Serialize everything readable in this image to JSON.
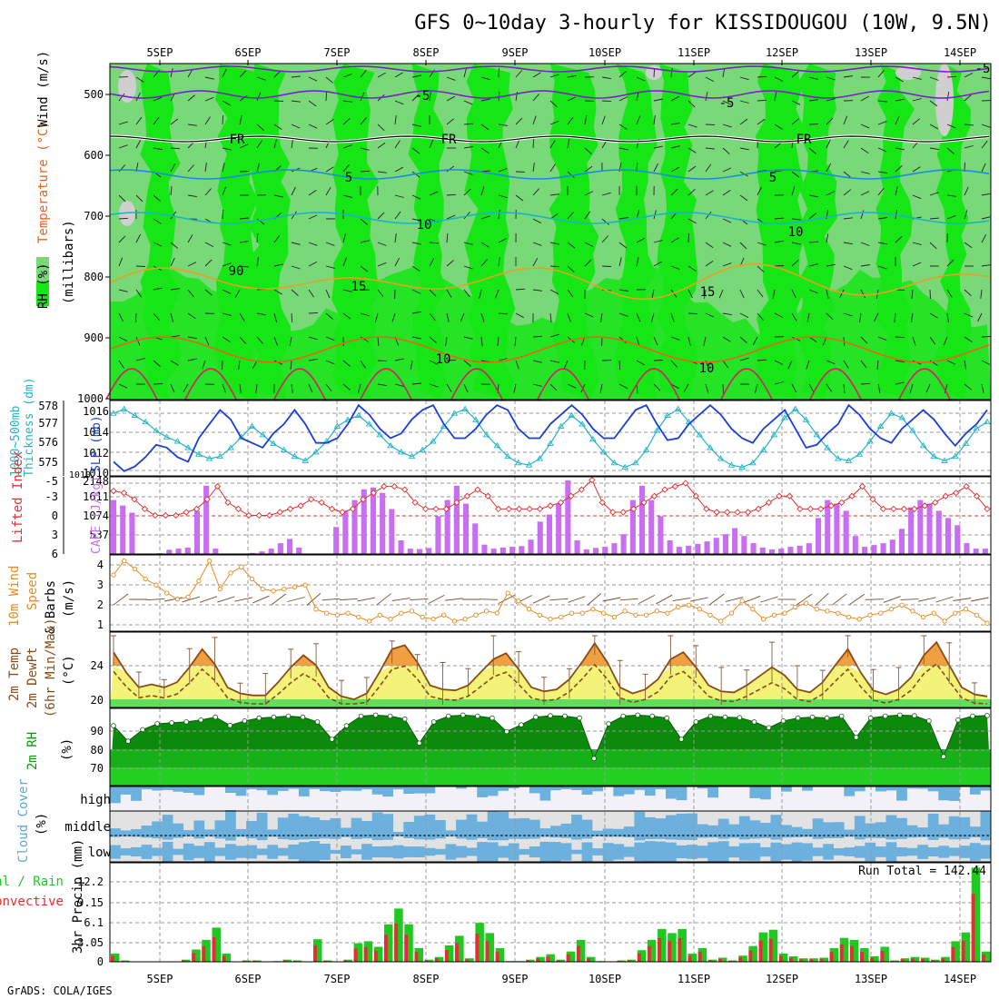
{
  "title": "GFS 0~10day 3-hourly for KISSIDOUGOU (10W, 9.5N)",
  "footer": "GrADS: COLA/IGES",
  "dates": [
    "5SEP",
    "6SEP",
    "7SEP",
    "8SEP",
    "9SEP",
    "10SEP",
    "11SEP",
    "12SEP",
    "13SEP",
    "14SEP"
  ],
  "colors": {
    "rh_light": "#79d979",
    "rh_bright": "#16e516",
    "rh_dark": "#0b9a0b",
    "rh_gray": "#cfcfcf",
    "temp_purple": "#7a22c8",
    "temp_blue": "#1c8ce0",
    "temp_cyan": "#1bb3c8",
    "temp_orange": "#e8a020",
    "temp_dorange": "#e8621a",
    "temp_magenta": "#d81c6a",
    "slp": "#1a3ed8",
    "thickness": "#22b4c8",
    "lifted": "#e03030",
    "cape": "#c86ef0",
    "wind": "#e88a20",
    "temp_fill": "#f3f37a",
    "temp_hot": "#f0a040",
    "temp_line": "#8b4a14",
    "rh2m_dark": "#0b8a0b",
    "rh2m_mid": "#18b018",
    "rh2m_low": "#22d022",
    "cloud": "#6cb0de",
    "precip_green": "#22c822",
    "precip_red": "#e03030"
  },
  "upper_panel": {
    "ylabel_rh": "RH (%)",
    "ylabel_temp": "Temperature (°C)",
    "ylabel_wind": "Wind (m/s)",
    "ylabel_units": "(millibars)",
    "yticks": [
      "500",
      "600",
      "700",
      "800",
      "900",
      "1000"
    ],
    "contour_labels": [
      "-5",
      "-5",
      "FR",
      "FR",
      "FR",
      "-5",
      "5",
      "5",
      "10",
      "10",
      "15",
      "15",
      "10",
      "10",
      "90"
    ]
  },
  "slp_panel": {
    "ylabel_thk": "Thickness (dm)",
    "ylabel_thk_top": "1000~500mb",
    "ylabel_slp": "SLP (mb)",
    "left_ticks": [
      "578",
      "577",
      "576",
      "575"
    ],
    "right_ticks": [
      "1016",
      "1014",
      "1012",
      "1010"
    ],
    "corner_tick": "1010"
  },
  "cape_panel": {
    "ylabel_li": "Lifted Index",
    "ylabel_cape": "CAPE (J/kg)",
    "left_ticks": [
      "-5",
      "-3",
      "0",
      "3",
      "6"
    ],
    "right_ticks": [
      "2148",
      "1611",
      "1074",
      "537"
    ]
  },
  "wind_panel": {
    "ylabel_a": "10m Wind",
    "ylabel_b": "Speed",
    "ylabel_c": "& Barbs",
    "units": "(m/s)",
    "ticks": [
      "4",
      "3",
      "2",
      "1"
    ]
  },
  "temp_panel": {
    "ylabel_a": "2m Temp",
    "ylabel_b": "2m DewPt",
    "ylabel_c": "(6hr Min/Max)",
    "units": "(°C)",
    "ticks": [
      "24",
      "20"
    ]
  },
  "rh_panel": {
    "ylabel": "2m RH",
    "units": "(%)",
    "ticks": [
      "90",
      "80",
      "70"
    ]
  },
  "cloud_panel": {
    "ylabel": "Cloud Cover",
    "units": "(%)",
    "levels": [
      "high",
      "middle",
      "low"
    ]
  },
  "precip_panel": {
    "ylabel_a": "3hr Precip (mm)",
    "ylabel_total": "Total / Rain",
    "ylabel_conv": "Convective",
    "ticks": [
      "12.2",
      "9.15",
      "6.1",
      "3.05",
      "0"
    ],
    "run_total": "Run Total = 142.44"
  },
  "chart_data": [
    {
      "type": "line",
      "title": "SLP (mb)",
      "x": "3-hourly steps 4 SEP 21Z to 14 SEP",
      "ylim": [
        1009,
        1017
      ],
      "values": [
        1010.5,
        1009.5,
        1010,
        1011,
        1012.3,
        1012,
        1011,
        1010.5,
        1013,
        1014.5,
        1016,
        1015,
        1013,
        1012.5,
        1012,
        1013.5,
        1014.5,
        1016,
        1014.5,
        1012.5,
        1012.5,
        1013,
        1014.5,
        1016.5,
        1015.5,
        1014,
        1013,
        1013.5,
        1015,
        1016,
        1016.5,
        1014.5,
        1013,
        1013,
        1014,
        1015.5,
        1016.5,
        1016,
        1014,
        1013,
        1013,
        1014.5,
        1015.5,
        1016.5,
        1015.5,
        1014,
        1013,
        1013,
        1014.5,
        1016,
        1016.5,
        1014.5,
        1012.8,
        1013,
        1014.5,
        1015.5,
        1016.5,
        1015.5,
        1014,
        1013,
        1012.5,
        1014,
        1015,
        1016,
        1014,
        1012,
        1012.3,
        1013.5,
        1014.5,
        1016.5,
        1015.5,
        1014,
        1013,
        1012.5,
        1014,
        1015,
        1016,
        1015,
        1013.5,
        1012.2,
        1013.5,
        1014.5,
        1016
      ]
    },
    {
      "type": "line",
      "title": "Thickness 1000~500mb (dm)",
      "ylim": [
        574.7,
        578.2
      ],
      "values": [
        577.6,
        577.8,
        577.5,
        577.2,
        576.8,
        576.5,
        576.3,
        576,
        575.7,
        575.5,
        575.6,
        576,
        576.5,
        577,
        576.6,
        576.2,
        575.9,
        575.6,
        575.4,
        575.8,
        576.3,
        577,
        577.3,
        577.5,
        577.1,
        576.6,
        576.1,
        575.8,
        575.6,
        575.9,
        576.3,
        577,
        577.6,
        577.8,
        577.3,
        576.6,
        576.1,
        575.6,
        575.3,
        575.2,
        575.5,
        576.2,
        577,
        577.5,
        577.1,
        576.4,
        575.8,
        575.3,
        575.1,
        575.3,
        575.9,
        576.8,
        577.5,
        577.8,
        577.2,
        576.6,
        576,
        575.5,
        575.2,
        575.1,
        575.3,
        575.9,
        576.6,
        577.4,
        577.8,
        577.3,
        576.6,
        576,
        575.5,
        575.4,
        575.7,
        576.3,
        577,
        577.6,
        577.4,
        576.8,
        576.1,
        575.6,
        575.4,
        575.6,
        576.2,
        576.9,
        577.2
      ]
    },
    {
      "type": "bar",
      "title": "CAPE (J/kg)",
      "ylim": [
        0,
        2148
      ],
      "values": [
        1500,
        1350,
        1150,
        5,
        10,
        20,
        120,
        150,
        180,
        1200,
        1900,
        150,
        5,
        5,
        10,
        30,
        70,
        150,
        300,
        420,
        180,
        10,
        10,
        10,
        750,
        1200,
        1500,
        1800,
        1850,
        1700,
        1250,
        380,
        150,
        140,
        170,
        1050,
        1500,
        1900,
        1400,
        850,
        260,
        150,
        180,
        200,
        220,
        400,
        900,
        1100,
        1400,
        2050,
        380,
        130,
        170,
        200,
        300,
        550,
        1500,
        1900,
        1500,
        1050,
        380,
        200,
        230,
        280,
        350,
        450,
        550,
        720,
        500,
        300,
        180,
        130,
        150,
        200,
        230,
        300,
        1000,
        1500,
        1400,
        1200,
        500,
        200,
        250,
        300,
        400,
        700,
        1300,
        1500,
        1400,
        1200,
        1000,
        800,
        300,
        150,
        150
      ]
    },
    {
      "type": "line",
      "title": "Lifted Index",
      "ylim": [
        6,
        -6
      ],
      "values": [
        -3.8,
        -3.5,
        -2.5,
        -1,
        0,
        0,
        0,
        -0.5,
        -1,
        -2.5,
        -4.5,
        -2,
        -1,
        0,
        0,
        0,
        -0.5,
        -1,
        -1.5,
        -2.5,
        -2,
        -1,
        -0.5,
        -1,
        -2.5,
        -3.5,
        -4.5,
        -4.5,
        -4,
        -2,
        -1,
        -1,
        -1,
        -2,
        -3,
        -4,
        -3,
        -1,
        -1,
        -1,
        -1,
        -1,
        -1.5,
        -2,
        -3,
        -4,
        -5.5,
        -2,
        -0.5,
        -0.5,
        -1,
        -2,
        -3,
        -4,
        -4.5,
        -5,
        -3,
        -1,
        -0.5,
        -0.5,
        -0.5,
        -0.5,
        -1,
        -2,
        -3,
        -3,
        -1,
        -1,
        -1,
        -1.5,
        -2,
        -3,
        -4.5,
        -2.5,
        -1,
        -1,
        -1,
        -1,
        -1.5,
        -2,
        -3,
        -3.5,
        -4.5,
        -3,
        -1
      ]
    },
    {
      "type": "line",
      "title": "10m Wind Speed (m/s)",
      "ylim": [
        0.7,
        4.5
      ],
      "values": [
        3.5,
        4.2,
        3.8,
        3.3,
        3,
        2.6,
        2.3,
        2.4,
        3.2,
        4.2,
        2.8,
        3.6,
        3.9,
        3.3,
        2.8,
        2.7,
        2.8,
        2.9,
        3,
        1.8,
        1.6,
        1.5,
        1.6,
        1.4,
        1.2,
        1.5,
        1.3,
        1.6,
        1.7,
        1.4,
        1.3,
        1.5,
        1.2,
        1.3,
        1.5,
        1.7,
        1.6,
        2.6,
        2.2,
        1.8,
        1.5,
        1.3,
        1.4,
        1.6,
        1.6,
        1.8,
        1.6,
        1.4,
        1.7,
        1.5,
        1.5,
        1.7,
        1.6,
        1.9,
        2,
        1.8,
        1.5,
        1.2,
        1.6,
        2.2,
        1.8,
        1.3,
        1.5,
        1.6,
        1.9,
        2.1,
        1.8,
        1.7,
        1.6,
        1.4,
        1.3,
        1.5,
        1.6,
        1.8,
        2,
        1.7,
        1.4,
        1.6,
        1.2,
        1.6,
        1.8,
        1.5,
        1.1
      ]
    },
    {
      "type": "area",
      "title": "2m Temp (°C)",
      "ylim": [
        19,
        26.5
      ],
      "values": [
        24.5,
        22.5,
        21,
        21.3,
        21,
        21.5,
        23,
        24.8,
        23.3,
        21,
        20.4,
        20.2,
        20.2,
        21.5,
        23,
        24.2,
        23.2,
        21,
        20.1,
        19.8,
        20.4,
        22.5,
        24.8,
        25.2,
        23.5,
        21.2,
        20.8,
        20.7,
        21.2,
        22.5,
        23.8,
        24.4,
        22.8,
        21,
        20.6,
        20.8,
        21.8,
        23.5,
        25.4,
        23.5,
        21,
        20.4,
        20.8,
        21.8,
        23.8,
        24.5,
        23,
        21.2,
        20.6,
        20.5,
        21.2,
        22.1,
        23,
        22.2,
        20.8,
        20.5,
        21.5,
        23.2,
        24.8,
        22.5,
        20.7,
        20.3,
        20.8,
        22,
        24.2,
        25.5,
        23.2,
        21,
        20.3,
        20.1
      ]
    },
    {
      "type": "area",
      "title": "2m RH (%)",
      "ylim": [
        60,
        100
      ],
      "values": [
        91,
        83,
        89,
        92,
        92.5,
        93,
        94,
        95.5,
        91.2,
        93.5,
        95,
        95.5,
        96,
        95.5,
        93,
        84,
        91,
        96,
        96.5,
        96,
        94.5,
        82,
        93,
        96,
        96.5,
        96,
        95,
        88,
        91.5,
        95.5,
        96.2,
        96,
        95,
        74,
        92,
        96,
        96.5,
        96,
        95,
        84,
        93,
        96,
        95.5,
        95.2,
        93,
        90,
        93.5,
        95,
        95.5,
        95,
        96,
        85,
        95,
        96,
        96.5,
        96.2,
        93.5,
        75,
        94,
        96,
        96.3
      ]
    },
    {
      "type": "bar",
      "title": "3hr Precip (mm)",
      "ylim": [
        0,
        14.5
      ],
      "values": [
        1.2,
        0.2,
        0,
        0,
        0,
        0,
        0,
        0.3,
        1.8,
        3.2,
        5,
        1.2,
        0,
        0.2,
        0.2,
        0,
        0.1,
        0.3,
        0.2,
        0,
        3.3,
        0.2,
        0,
        0.3,
        2.7,
        3,
        2.2,
        5.5,
        7.8,
        5.5,
        2,
        0.3,
        0.7,
        2.4,
        3.8,
        0.5,
        5.7,
        4.2,
        2,
        0.1,
        0.1,
        0.3,
        0.7,
        1.1,
        0.3,
        1.5,
        3.2,
        0.7,
        0.1,
        0,
        0.2,
        0.3,
        1.7,
        3.2,
        4.8,
        4.2,
        4.8,
        1.2,
        2,
        0.3,
        0.6,
        0.2,
        0.9,
        2.3,
        4.3,
        4.7,
        1.2,
        0.8,
        0.5,
        0.5,
        0.6,
        2,
        3.5,
        3.2,
        2,
        0.8,
        2.2,
        0.2,
        0.5,
        0.7,
        0.6,
        0.3,
        0.7,
        3,
        4.3,
        13.8,
        1.5
      ]
    }
  ]
}
